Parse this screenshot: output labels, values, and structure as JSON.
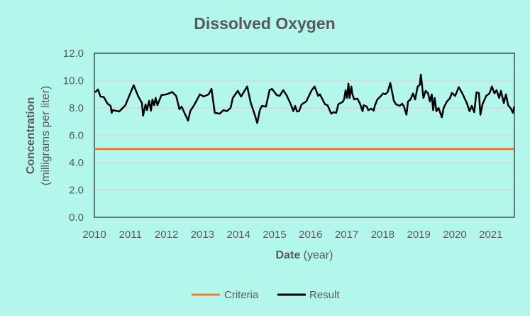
{
  "chart_data": {
    "type": "line",
    "title": "Dissolved Oxygen",
    "xlabel_bold": "Date",
    "xlabel_rest": " (year)",
    "ylabel_bold": "Concentration",
    "ylabel_rest": "(milligrams per liter)",
    "ylim": [
      0,
      12
    ],
    "xlim": [
      2010,
      2021.65
    ],
    "yticks": [
      "0.0",
      "2.0",
      "4.0",
      "6.0",
      "8.0",
      "10.0",
      "12.0"
    ],
    "xticks": [
      "2010",
      "2011",
      "2012",
      "2013",
      "2014",
      "2015",
      "2016",
      "2017",
      "2018",
      "2019",
      "2020",
      "2021"
    ],
    "grid": true,
    "legend_position": "bottom",
    "colors": {
      "background": "#b3f6ec",
      "criteria": "#ed7d31",
      "result": "#000000",
      "grid": "#d9d9d9"
    },
    "series": [
      {
        "name": "Criteria",
        "x": [
          2010,
          2021.65
        ],
        "y": [
          5.0,
          5.0
        ]
      },
      {
        "name": "Result",
        "x": [
          2010.02,
          2010.1,
          2010.17,
          2010.26,
          2010.37,
          2010.45,
          2010.48,
          2010.51,
          2010.69,
          2010.86,
          2011.09,
          2011.22,
          2011.32,
          2011.35,
          2011.42,
          2011.46,
          2011.52,
          2011.57,
          2011.61,
          2011.66,
          2011.7,
          2011.75,
          2011.86,
          2012.01,
          2012.16,
          2012.27,
          2012.36,
          2012.42,
          2012.6,
          2012.66,
          2012.78,
          2012.93,
          2013.03,
          2013.17,
          2013.25,
          2013.34,
          2013.48,
          2013.58,
          2013.68,
          2013.78,
          2013.84,
          2013.98,
          2014.07,
          2014.24,
          2014.34,
          2014.44,
          2014.52,
          2014.59,
          2014.65,
          2014.76,
          2014.86,
          2014.93,
          2015.06,
          2015.14,
          2015.24,
          2015.33,
          2015.45,
          2015.52,
          2015.57,
          2015.62,
          2015.68,
          2015.75,
          2015.88,
          2016.03,
          2016.11,
          2016.21,
          2016.26,
          2016.4,
          2016.47,
          2016.57,
          2016.63,
          2016.71,
          2016.77,
          2016.88,
          2016.93,
          2016.97,
          2017.01,
          2017.05,
          2017.08,
          2017.13,
          2017.16,
          2017.21,
          2017.3,
          2017.37,
          2017.44,
          2017.47,
          2017.56,
          2017.6,
          2017.68,
          2017.75,
          2017.78,
          2017.85,
          2017.95,
          2018.01,
          2018.07,
          2018.14,
          2018.21,
          2018.31,
          2018.37,
          2018.47,
          2018.54,
          2018.59,
          2018.66,
          2018.7,
          2018.77,
          2018.84,
          2018.9,
          2018.97,
          2019.03,
          2019.06,
          2019.09,
          2019.13,
          2019.19,
          2019.26,
          2019.31,
          2019.36,
          2019.4,
          2019.44,
          2019.49,
          2019.55,
          2019.64,
          2019.69,
          2019.78,
          2019.86,
          2019.92,
          2020.01,
          2020.11,
          2020.21,
          2020.34,
          2020.41,
          2020.47,
          2020.54,
          2020.6,
          2020.67,
          2020.71,
          2020.77,
          2020.87,
          2020.96,
          2021.03,
          2021.1,
          2021.16,
          2021.23,
          2021.28,
          2021.36,
          2021.42,
          2021.48,
          2021.56,
          2021.61,
          2021.65
        ],
        "y": [
          9.14,
          9.35,
          8.83,
          8.8,
          8.3,
          8.15,
          7.64,
          7.84,
          7.74,
          8.2,
          9.66,
          8.83,
          8.36,
          7.43,
          8.26,
          7.84,
          8.52,
          7.8,
          8.62,
          8.2,
          8.73,
          8.2,
          8.94,
          9.0,
          9.17,
          8.88,
          7.9,
          8.1,
          7.07,
          7.76,
          8.26,
          9.0,
          8.83,
          8.99,
          9.4,
          7.64,
          7.58,
          7.84,
          7.76,
          8.0,
          8.73,
          9.25,
          8.83,
          9.57,
          8.36,
          7.58,
          6.9,
          7.84,
          8.15,
          8.1,
          9.3,
          9.4,
          8.94,
          8.88,
          9.3,
          8.94,
          8.26,
          7.76,
          8.15,
          7.74,
          7.76,
          8.26,
          8.48,
          9.3,
          9.57,
          8.88,
          9.0,
          8.26,
          8.2,
          7.58,
          7.69,
          7.64,
          8.28,
          8.42,
          8.62,
          9.3,
          8.73,
          9.77,
          8.73,
          9.57,
          8.99,
          8.62,
          8.68,
          8.31,
          7.76,
          8.2,
          8.1,
          7.84,
          7.95,
          7.8,
          8.15,
          8.62,
          8.88,
          9.06,
          8.99,
          9.17,
          9.83,
          8.53,
          8.26,
          8.15,
          8.31,
          8.1,
          7.5,
          8.47,
          8.62,
          9.06,
          8.62,
          9.57,
          9.7,
          10.44,
          9.66,
          8.73,
          9.25,
          9.06,
          8.47,
          8.99,
          7.84,
          8.73,
          7.76,
          8.0,
          7.32,
          8.0,
          8.47,
          8.68,
          9.1,
          8.88,
          9.52,
          9.06,
          8.31,
          7.76,
          8.15,
          7.69,
          9.14,
          9.1,
          7.5,
          8.28,
          8.88,
          9.06,
          9.57,
          9.06,
          9.3,
          8.73,
          9.25,
          8.36,
          8.99,
          8.2,
          7.95,
          7.64,
          8.1
        ]
      }
    ]
  }
}
